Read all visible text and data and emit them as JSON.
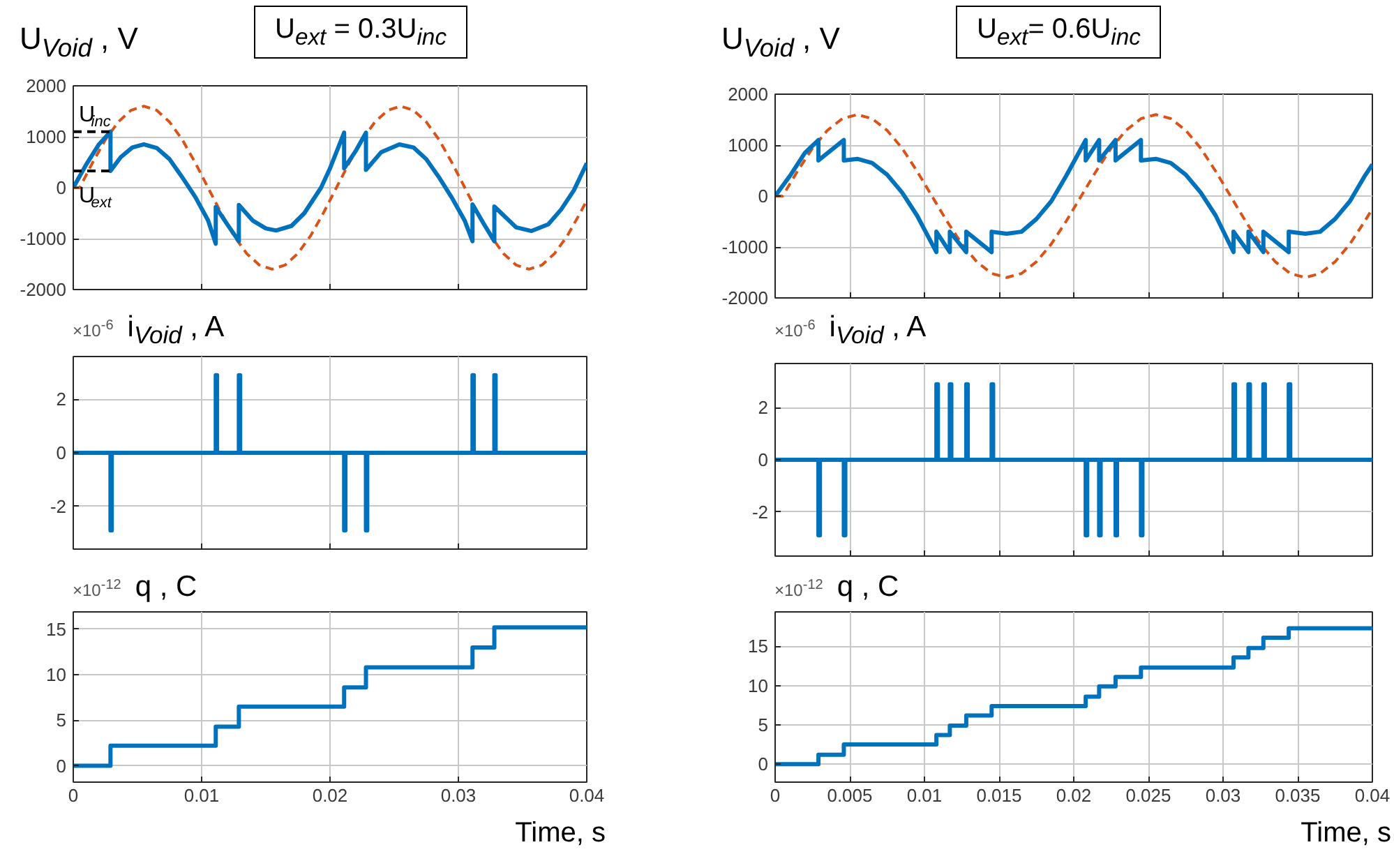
{
  "chart_data": [
    {
      "type": "line",
      "title": "U$_{Void}$ , V",
      "annotations": [
        "U$_{ext}$ = 0.3U$_{inc}$",
        {
          "text": "U$_{inc}$",
          "x": 0,
          "y": 1100
        },
        {
          "text": "U$_{ext}$",
          "x": 0,
          "y": 330
        }
      ],
      "xlim": [
        0,
        0.04
      ],
      "ylim": [
        -2000,
        2000
      ],
      "xticks": [
        0,
        0.01,
        0.02,
        0.03,
        0.04
      ],
      "yticks": [
        -2000,
        -1000,
        0,
        1000,
        2000
      ],
      "grid": true,
      "tick_labels": "y",
      "series": [
        {
          "color": "#d95319",
          "line_style": "dashed",
          "x": [
            0,
            0.0005,
            0.0015,
            0.0025,
            0.0035,
            0.0045,
            0.0055,
            0.0065,
            0.0075,
            0.0085,
            0.0095,
            0.0105,
            0.0115,
            0.0125,
            0.0135,
            0.0145,
            0.0155,
            0.0165,
            0.0175,
            0.0185,
            0.0195,
            0.0205,
            0.0215,
            0.0225,
            0.0235,
            0.0245,
            0.0255,
            0.0265,
            0.0275,
            0.0285,
            0.0295,
            0.0305,
            0.0315,
            0.0325,
            0.0335,
            0.0345,
            0.0355,
            0.0365,
            0.0375,
            0.0385,
            0.0395,
            0.04
          ],
          "values": [
            0,
            0,
            490,
            940,
            1290,
            1520,
            1600,
            1520,
            1290,
            940,
            490,
            0,
            -490,
            -940,
            -1290,
            -1520,
            -1600,
            -1520,
            -1290,
            -940,
            -490,
            0,
            490,
            940,
            1290,
            1520,
            1600,
            1520,
            1290,
            940,
            490,
            0,
            -490,
            -940,
            -1290,
            -1520,
            -1600,
            -1520,
            -1290,
            -940,
            -490,
            -250
          ]
        },
        {
          "color": "#0072bd",
          "line_style": "solid",
          "x": [
            0,
            0.001,
            0.002,
            0.0029,
            0.0029,
            0.0037,
            0.0046,
            0.0055,
            0.0065,
            0.0075,
            0.0085,
            0.0095,
            0.0105,
            0.0111,
            0.0111,
            0.012,
            0.0129,
            0.0129,
            0.014,
            0.015,
            0.0158,
            0.017,
            0.018,
            0.0193,
            0.02,
            0.0211,
            0.0211,
            0.022,
            0.0228,
            0.0228,
            0.024,
            0.0254,
            0.0265,
            0.0275,
            0.0285,
            0.0295,
            0.0305,
            0.0311,
            0.0311,
            0.032,
            0.0328,
            0.0328,
            0.0345,
            0.0357,
            0.037,
            0.038,
            0.039,
            0.04
          ],
          "values": [
            0,
            450,
            850,
            1100,
            330,
            600,
            790,
            850,
            780,
            560,
            200,
            -180,
            -640,
            -1100,
            -380,
            -720,
            -1050,
            -340,
            -650,
            -800,
            -840,
            -750,
            -500,
            0,
            380,
            1080,
            380,
            720,
            1080,
            350,
            700,
            850,
            790,
            560,
            200,
            -200,
            -650,
            -1050,
            -330,
            -720,
            -1050,
            -370,
            -780,
            -850,
            -720,
            -430,
            -50,
            480
          ]
        },
        {
          "color": "#000000",
          "line_style": "dashed",
          "x": [
            0,
            0.0029
          ],
          "values": [
            1100,
            1100
          ]
        },
        {
          "color": "#000000",
          "line_style": "dashed",
          "x": [
            0,
            0.0029
          ],
          "values": [
            330,
            330
          ]
        }
      ]
    },
    {
      "type": "line",
      "title": "U$_{Void}$ , V",
      "annotations": [
        "U$_{ext}$= 0.6U$_{inc}$"
      ],
      "xlim": [
        0,
        0.04
      ],
      "ylim": [
        -2000,
        2000
      ],
      "xticks": [
        0,
        0.005,
        0.01,
        0.015,
        0.02,
        0.025,
        0.03,
        0.035,
        0.04
      ],
      "yticks": [
        -2000,
        -1000,
        0,
        1000,
        2000
      ],
      "grid": true,
      "tick_labels": "y",
      "series": [
        {
          "color": "#d95319",
          "line_style": "dashed",
          "x": [
            0,
            0.0005,
            0.0015,
            0.0025,
            0.0035,
            0.0045,
            0.0055,
            0.0065,
            0.0075,
            0.0085,
            0.0095,
            0.0105,
            0.0115,
            0.0125,
            0.0135,
            0.0145,
            0.0155,
            0.0165,
            0.0175,
            0.0185,
            0.0195,
            0.0205,
            0.0215,
            0.0225,
            0.0235,
            0.0245,
            0.0255,
            0.0265,
            0.0275,
            0.0285,
            0.0295,
            0.0305,
            0.0315,
            0.0325,
            0.0335,
            0.0345,
            0.0355,
            0.0365,
            0.0375,
            0.0385,
            0.0395,
            0.04
          ],
          "values": [
            0,
            0,
            490,
            940,
            1290,
            1520,
            1600,
            1520,
            1290,
            940,
            490,
            0,
            -490,
            -940,
            -1290,
            -1520,
            -1600,
            -1520,
            -1290,
            -940,
            -490,
            0,
            490,
            940,
            1290,
            1520,
            1600,
            1520,
            1290,
            940,
            490,
            0,
            -490,
            -940,
            -1290,
            -1520,
            -1600,
            -1520,
            -1290,
            -940,
            -490,
            -250
          ]
        },
        {
          "color": "#0072bd",
          "line_style": "solid",
          "x": [
            0,
            0.001,
            0.002,
            0.0029,
            0.0029,
            0.0046,
            0.0046,
            0.0055,
            0.0065,
            0.0075,
            0.0085,
            0.0095,
            0.0108,
            0.0108,
            0.0117,
            0.0117,
            0.0128,
            0.0128,
            0.0145,
            0.0145,
            0.0155,
            0.0165,
            0.0175,
            0.0185,
            0.0195,
            0.0208,
            0.0208,
            0.0217,
            0.0217,
            0.0228,
            0.0228,
            0.0245,
            0.0245,
            0.0255,
            0.0265,
            0.0275,
            0.0285,
            0.0295,
            0.0307,
            0.0307,
            0.0317,
            0.0317,
            0.0327,
            0.0327,
            0.0344,
            0.0344,
            0.0355,
            0.0365,
            0.0375,
            0.0385,
            0.0395,
            0.04
          ],
          "values": [
            0,
            400,
            850,
            1100,
            700,
            1100,
            700,
            730,
            650,
            420,
            70,
            -380,
            -1100,
            -700,
            -1100,
            -700,
            -1100,
            -700,
            -1100,
            -700,
            -740,
            -700,
            -450,
            -100,
            400,
            1100,
            700,
            1100,
            700,
            1100,
            700,
            1100,
            700,
            730,
            650,
            420,
            70,
            -380,
            -1100,
            -700,
            -1100,
            -700,
            -1100,
            -700,
            -1100,
            -700,
            -740,
            -700,
            -450,
            -100,
            400,
            620
          ]
        }
      ]
    },
    {
      "type": "line",
      "title": "i$_{Void}$ , A",
      "annotations": [
        "×10$^{-6}$"
      ],
      "xlim": [
        0,
        0.04
      ],
      "ylim": [
        -3.6,
        3.6
      ],
      "xticks": [
        0,
        0.01,
        0.02,
        0.03,
        0.04
      ],
      "yticks": [
        -2,
        0,
        2
      ],
      "grid": true,
      "tick_labels": "y",
      "series": [
        {
          "color": "#0072bd",
          "line_style": "solid",
          "x": [
            0,
            0.0029,
            0.0029,
            0.003,
            0.003,
            0.0111,
            0.0111,
            0.0112,
            0.0112,
            0.0129,
            0.0129,
            0.013,
            0.013,
            0.0211,
            0.0211,
            0.0212,
            0.0212,
            0.0228,
            0.0228,
            0.0229,
            0.0229,
            0.0311,
            0.0311,
            0.0312,
            0.0312,
            0.0328,
            0.0328,
            0.0329,
            0.0329,
            0.04
          ],
          "values": [
            0,
            0,
            -2.9,
            -2.9,
            0,
            0,
            2.9,
            2.9,
            0,
            0,
            2.9,
            2.9,
            0,
            0,
            -2.9,
            -2.9,
            0,
            0,
            -2.9,
            -2.9,
            0,
            0,
            2.9,
            2.9,
            0,
            0,
            2.9,
            2.9,
            0,
            0
          ]
        }
      ]
    },
    {
      "type": "line",
      "title": "i$_{Void}$ , A",
      "annotations": [
        "×10$^{-6}$"
      ],
      "xlim": [
        0,
        0.04
      ],
      "ylim": [
        -3.7,
        3.7
      ],
      "xticks": [
        0,
        0.005,
        0.01,
        0.015,
        0.02,
        0.025,
        0.03,
        0.035,
        0.04
      ],
      "yticks": [
        -2,
        0,
        2
      ],
      "grid": true,
      "tick_labels": "y",
      "series": [
        {
          "color": "#0072bd",
          "line_style": "solid",
          "x": [
            0,
            0.0029,
            0.0029,
            0.003,
            0.003,
            0.0046,
            0.0046,
            0.0047,
            0.0047,
            0.0108,
            0.0108,
            0.0109,
            0.0109,
            0.0117,
            0.0117,
            0.0118,
            0.0118,
            0.0128,
            0.0128,
            0.0129,
            0.0129,
            0.0145,
            0.0145,
            0.0146,
            0.0146,
            0.0208,
            0.0208,
            0.0209,
            0.0209,
            0.0217,
            0.0217,
            0.0218,
            0.0218,
            0.0228,
            0.0228,
            0.0229,
            0.0229,
            0.0245,
            0.0245,
            0.0246,
            0.0246,
            0.0307,
            0.0307,
            0.0308,
            0.0308,
            0.0317,
            0.0317,
            0.0318,
            0.0318,
            0.0327,
            0.0327,
            0.0328,
            0.0328,
            0.0344,
            0.0344,
            0.0345,
            0.0345,
            0.04
          ],
          "values": [
            0,
            0,
            -2.9,
            -2.9,
            0,
            0,
            -2.9,
            -2.9,
            0,
            0,
            2.9,
            2.9,
            0,
            0,
            2.9,
            2.9,
            0,
            0,
            2.9,
            2.9,
            0,
            0,
            2.9,
            2.9,
            0,
            0,
            -2.9,
            -2.9,
            0,
            0,
            -2.9,
            -2.9,
            0,
            0,
            -2.9,
            -2.9,
            0,
            0,
            -2.9,
            -2.9,
            0,
            0,
            2.9,
            2.9,
            0,
            0,
            2.9,
            2.9,
            0,
            0,
            2.9,
            2.9,
            0,
            0,
            2.9,
            2.9,
            0,
            0
          ]
        }
      ]
    },
    {
      "type": "line",
      "title": "q , C",
      "xlabel": "Time, s",
      "annotations": [
        "×10$^{-12}$"
      ],
      "xlim": [
        0,
        0.04
      ],
      "ylim": [
        -1.8,
        16.9
      ],
      "xticks": [
        0,
        0.01,
        0.02,
        0.03,
        0.04
      ],
      "yticks": [
        0,
        5,
        10,
        15
      ],
      "grid": true,
      "series": [
        {
          "color": "#0072bd",
          "line_style": "solid",
          "x": [
            0,
            0.0029,
            0.0029,
            0.0111,
            0.0111,
            0.0129,
            0.0129,
            0.0211,
            0.0211,
            0.0228,
            0.0228,
            0.0311,
            0.0311,
            0.0328,
            0.0328,
            0.04
          ],
          "values": [
            0,
            0,
            2.2,
            2.2,
            4.3,
            4.3,
            6.5,
            6.5,
            8.6,
            8.6,
            10.8,
            10.8,
            13,
            13,
            15.2,
            15.2
          ]
        }
      ]
    },
    {
      "type": "line",
      "title": "q , C",
      "xlabel": "Time, s",
      "annotations": [
        "×10$^{-12}$"
      ],
      "xlim": [
        0,
        0.04
      ],
      "ylim": [
        -2.3,
        19.4
      ],
      "xticks": [
        0,
        0.005,
        0.01,
        0.015,
        0.02,
        0.025,
        0.03,
        0.035,
        0.04
      ],
      "yticks": [
        0,
        5,
        10,
        15
      ],
      "grid": true,
      "series": [
        {
          "color": "#0072bd",
          "line_style": "solid",
          "x": [
            0,
            0.0029,
            0.0029,
            0.0046,
            0.0046,
            0.0108,
            0.0108,
            0.0117,
            0.0117,
            0.0128,
            0.0128,
            0.0145,
            0.0145,
            0.0208,
            0.0208,
            0.0217,
            0.0217,
            0.0228,
            0.0228,
            0.0245,
            0.0245,
            0.0307,
            0.0307,
            0.0317,
            0.0317,
            0.0327,
            0.0327,
            0.0344,
            0.0344,
            0.04
          ],
          "values": [
            0,
            0,
            1.2,
            1.2,
            2.5,
            2.5,
            3.7,
            3.7,
            4.9,
            4.9,
            6.2,
            6.2,
            7.4,
            7.4,
            8.6,
            8.6,
            9.9,
            9.9,
            11.1,
            11.1,
            12.3,
            12.3,
            13.6,
            13.6,
            14.8,
            14.8,
            16.1,
            16.1,
            17.3,
            17.3
          ]
        }
      ]
    }
  ]
}
